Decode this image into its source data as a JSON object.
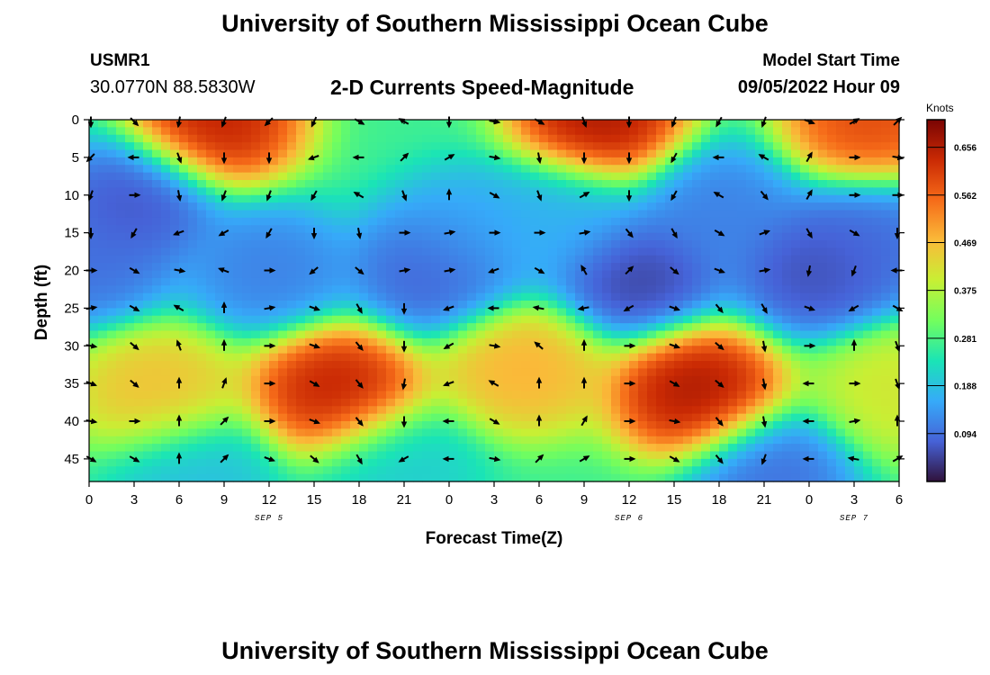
{
  "header": {
    "title": "University of Southern Mississippi Ocean Cube",
    "station": "USMR1",
    "coordinates": "30.0770N  88.5830W",
    "subtitle": "2-D Currents Speed-Magnitude",
    "model_start_label": "Model Start Time",
    "model_start_value": "09/05/2022 Hour 09"
  },
  "footer": {
    "title": "University of Southern Mississippi Ocean Cube"
  },
  "colors": {
    "background": "#ffffff",
    "colormap": [
      "#30123b",
      "#4662d7",
      "#36aaf9",
      "#1ae4b6",
      "#72fe5e",
      "#c8ef34",
      "#faba39",
      "#f66b19",
      "#ca2a04",
      "#7a0403"
    ]
  },
  "chart_data": {
    "type": "heatmap",
    "title": "2-D Currents Speed-Magnitude",
    "xlabel": "Forecast Time(Z)",
    "ylabel": "Depth (ft)",
    "x_ticks": [
      0,
      3,
      6,
      9,
      12,
      15,
      18,
      21,
      24,
      27,
      30,
      33,
      36,
      39,
      42,
      45,
      48,
      51,
      54
    ],
    "x_tick_labels": [
      "0",
      "3",
      "6",
      "9",
      "12",
      "15",
      "18",
      "21",
      "0",
      "3",
      "6",
      "9",
      "12",
      "15",
      "18",
      "21",
      "0",
      "3",
      "6"
    ],
    "xlim": [
      0,
      54
    ],
    "date_labels": [
      {
        "text": "SEP 5",
        "at": 12
      },
      {
        "text": "SEP 6",
        "at": 36
      },
      {
        "text": "SEP 7",
        "at": 51
      }
    ],
    "y_ticks": [
      0,
      5,
      10,
      15,
      20,
      25,
      30,
      35,
      40,
      45
    ],
    "y_tick_labels": [
      "0",
      "5",
      "10",
      "15",
      "20",
      "25",
      "30",
      "35",
      "40",
      "45"
    ],
    "ylim": [
      0,
      48
    ],
    "colorbar": {
      "title": "Knots",
      "ticks": [
        0.094,
        0.188,
        0.281,
        0.375,
        0.469,
        0.562,
        0.656
      ],
      "tick_labels": [
        "0.094",
        "0.188",
        "0.281",
        "0.375",
        "0.469",
        "0.562",
        "0.656"
      ],
      "range": [
        0,
        0.71
      ]
    },
    "speed_features": [
      {
        "kind": "max",
        "time": 8.5,
        "depth": 0,
        "value": 0.68
      },
      {
        "kind": "max",
        "time": 34,
        "depth": 0,
        "value": 0.7
      },
      {
        "kind": "max",
        "time": 52,
        "depth": 0,
        "value": 0.62
      },
      {
        "kind": "max",
        "time": 16.5,
        "depth": 36,
        "value": 0.68
      },
      {
        "kind": "max",
        "time": 40.5,
        "depth": 36,
        "value": 0.7
      },
      {
        "kind": "max",
        "time": 4.5,
        "depth": 36,
        "value": 0.48
      },
      {
        "kind": "max",
        "time": 29,
        "depth": 33,
        "value": 0.5
      },
      {
        "kind": "max",
        "time": 54,
        "depth": 36,
        "value": 0.42
      },
      {
        "kind": "min",
        "time": 3,
        "depth": 11,
        "value": 0.05
      },
      {
        "kind": "min",
        "time": 23,
        "depth": 20,
        "value": 0.06
      },
      {
        "kind": "min",
        "time": 36.5,
        "depth": 21,
        "value": 0.03
      },
      {
        "kind": "min",
        "time": 48.5,
        "depth": 20,
        "value": 0.04
      },
      {
        "kind": "min",
        "time": 0,
        "depth": 19,
        "value": 0.08
      },
      {
        "kind": "min",
        "time": 12,
        "depth": 20,
        "value": 0.1
      },
      {
        "kind": "min",
        "time": 42,
        "depth": 12,
        "value": 0.1
      },
      {
        "kind": "min",
        "time": 52,
        "depth": 16,
        "value": 0.08
      },
      {
        "kind": "min",
        "time": 25.5,
        "depth": 15,
        "value": 0.15
      },
      {
        "kind": "min",
        "time": 31.5,
        "depth": 13,
        "value": 0.16
      },
      {
        "kind": "min",
        "time": 7,
        "depth": 47,
        "value": 0.18
      },
      {
        "kind": "min",
        "time": 20.5,
        "depth": 46,
        "value": 0.2
      },
      {
        "kind": "min",
        "time": 45.5,
        "depth": 47,
        "value": 0.08
      }
    ],
    "vector_times": [
      0,
      3,
      6,
      9,
      12,
      15,
      18,
      21,
      24,
      27,
      30,
      33,
      36,
      39,
      42,
      45,
      48,
      51,
      54
    ],
    "vector_depths": [
      0,
      5,
      10,
      15,
      20,
      25,
      30,
      35,
      40,
      45
    ],
    "vector_directions_deg_from_north": [
      [
        180,
        135,
        190,
        200,
        225,
        205,
        120,
        300,
        180,
        100,
        120,
        160,
        180,
        200,
        210,
        200,
        110,
        60,
        45
      ],
      [
        225,
        270,
        160,
        180,
        180,
        250,
        270,
        45,
        60,
        100,
        170,
        180,
        180,
        210,
        270,
        300,
        30,
        90,
        100
      ],
      [
        200,
        90,
        170,
        200,
        200,
        210,
        300,
        160,
        0,
        120,
        160,
        60,
        180,
        210,
        300,
        140,
        30,
        90,
        90
      ],
      [
        180,
        210,
        250,
        240,
        210,
        180,
        170,
        90,
        80,
        90,
        90,
        80,
        140,
        150,
        120,
        70,
        150,
        120,
        180
      ],
      [
        90,
        120,
        100,
        290,
        90,
        230,
        130,
        80,
        80,
        250,
        120,
        330,
        45,
        130,
        110,
        80,
        190,
        200,
        270
      ],
      [
        80,
        120,
        300,
        0,
        80,
        110,
        150,
        180,
        250,
        270,
        280,
        260,
        240,
        110,
        140,
        150,
        110,
        240,
        120
      ],
      [
        100,
        130,
        340,
        0,
        90,
        110,
        140,
        180,
        240,
        100,
        310,
        0,
        90,
        110,
        130,
        170,
        90,
        0,
        160
      ],
      [
        110,
        130,
        0,
        20,
        90,
        120,
        140,
        190,
        250,
        300,
        0,
        0,
        90,
        120,
        130,
        170,
        270,
        90,
        160
      ],
      [
        100,
        90,
        0,
        45,
        90,
        110,
        140,
        180,
        270,
        120,
        0,
        30,
        90,
        100,
        140,
        170,
        270,
        80,
        0
      ],
      [
        120,
        120,
        0,
        45,
        110,
        130,
        150,
        240,
        270,
        100,
        45,
        60,
        90,
        120,
        140,
        200,
        270,
        280,
        60
      ]
    ]
  }
}
